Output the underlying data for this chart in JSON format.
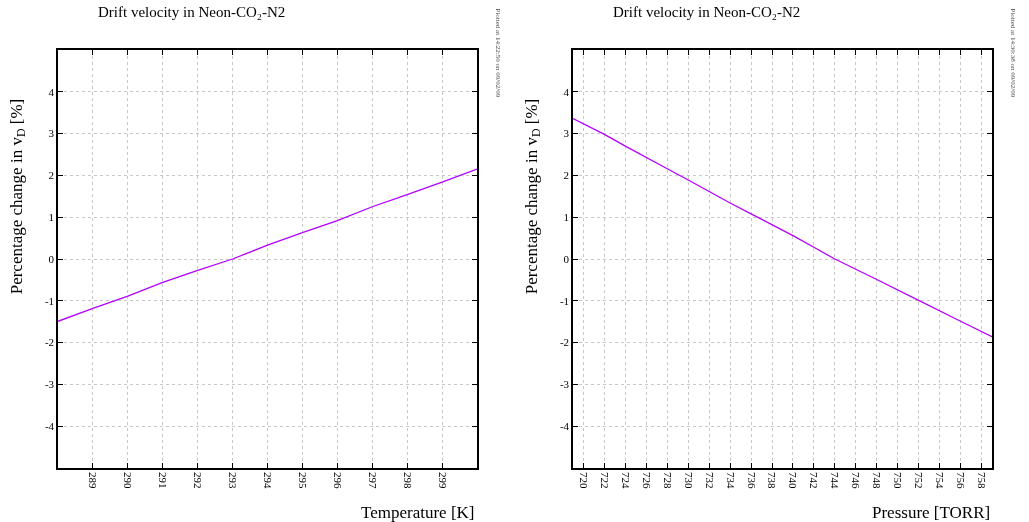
{
  "chart_data": [
    {
      "type": "line",
      "title": "Drift velocity in Neon-CO₂-N2",
      "xlabel": "Temperature [K]",
      "ylabel": "Percentage change in v$_{D}$ [%]",
      "x": [
        288,
        289,
        290,
        291,
        292,
        293,
        294,
        295,
        296,
        297,
        298,
        299,
        300
      ],
      "series": [
        {
          "color": "#b400ff",
          "values": [
            -1.49,
            -1.18,
            -0.89,
            -0.56,
            -0.27,
            0,
            0.33,
            0.63,
            0.92,
            1.25,
            1.54,
            1.84,
            2.15
          ]
        }
      ],
      "xlim": [
        288,
        300
      ],
      "xticks": [
        289,
        290,
        291,
        292,
        293,
        294,
        295,
        296,
        297,
        298,
        299
      ],
      "ylim": [
        -5,
        5
      ],
      "yticks": [
        -4,
        -3,
        -2,
        -1,
        0,
        1,
        2,
        3,
        4
      ],
      "grid": true,
      "marker": "none",
      "line_style": "solid",
      "annotations": [
        "Plotted at 14:22:50 on 09/02/09"
      ]
    },
    {
      "type": "line",
      "title": "Drift velocity in Neon-CO₂-N2",
      "xlabel": "Pressure [TORR]",
      "ylabel": "Percentage change in v$_{D}$ [%]",
      "x": [
        719,
        722,
        724,
        728,
        730,
        734,
        736,
        740,
        742,
        744,
        748,
        752,
        756,
        759
      ],
      "series": [
        {
          "color": "#b400ff",
          "values": [
            3.36,
            2.98,
            2.7,
            2.16,
            1.89,
            1.34,
            1.08,
            0.56,
            0.28,
            0,
            -0.49,
            -0.99,
            -1.49,
            -1.86
          ]
        }
      ],
      "xlim": [
        719,
        759
      ],
      "xticks": [
        720,
        722,
        724,
        726,
        728,
        730,
        732,
        734,
        736,
        738,
        740,
        742,
        744,
        746,
        748,
        750,
        752,
        754,
        756,
        758
      ],
      "ylim": [
        -5,
        5
      ],
      "yticks": [
        -4,
        -3,
        -2,
        -1,
        0,
        1,
        2,
        3,
        4
      ],
      "grid": true,
      "marker": "none",
      "line_style": "solid",
      "annotations": [
        "Plotted at 14:30:38 on 09/02/09"
      ]
    }
  ]
}
